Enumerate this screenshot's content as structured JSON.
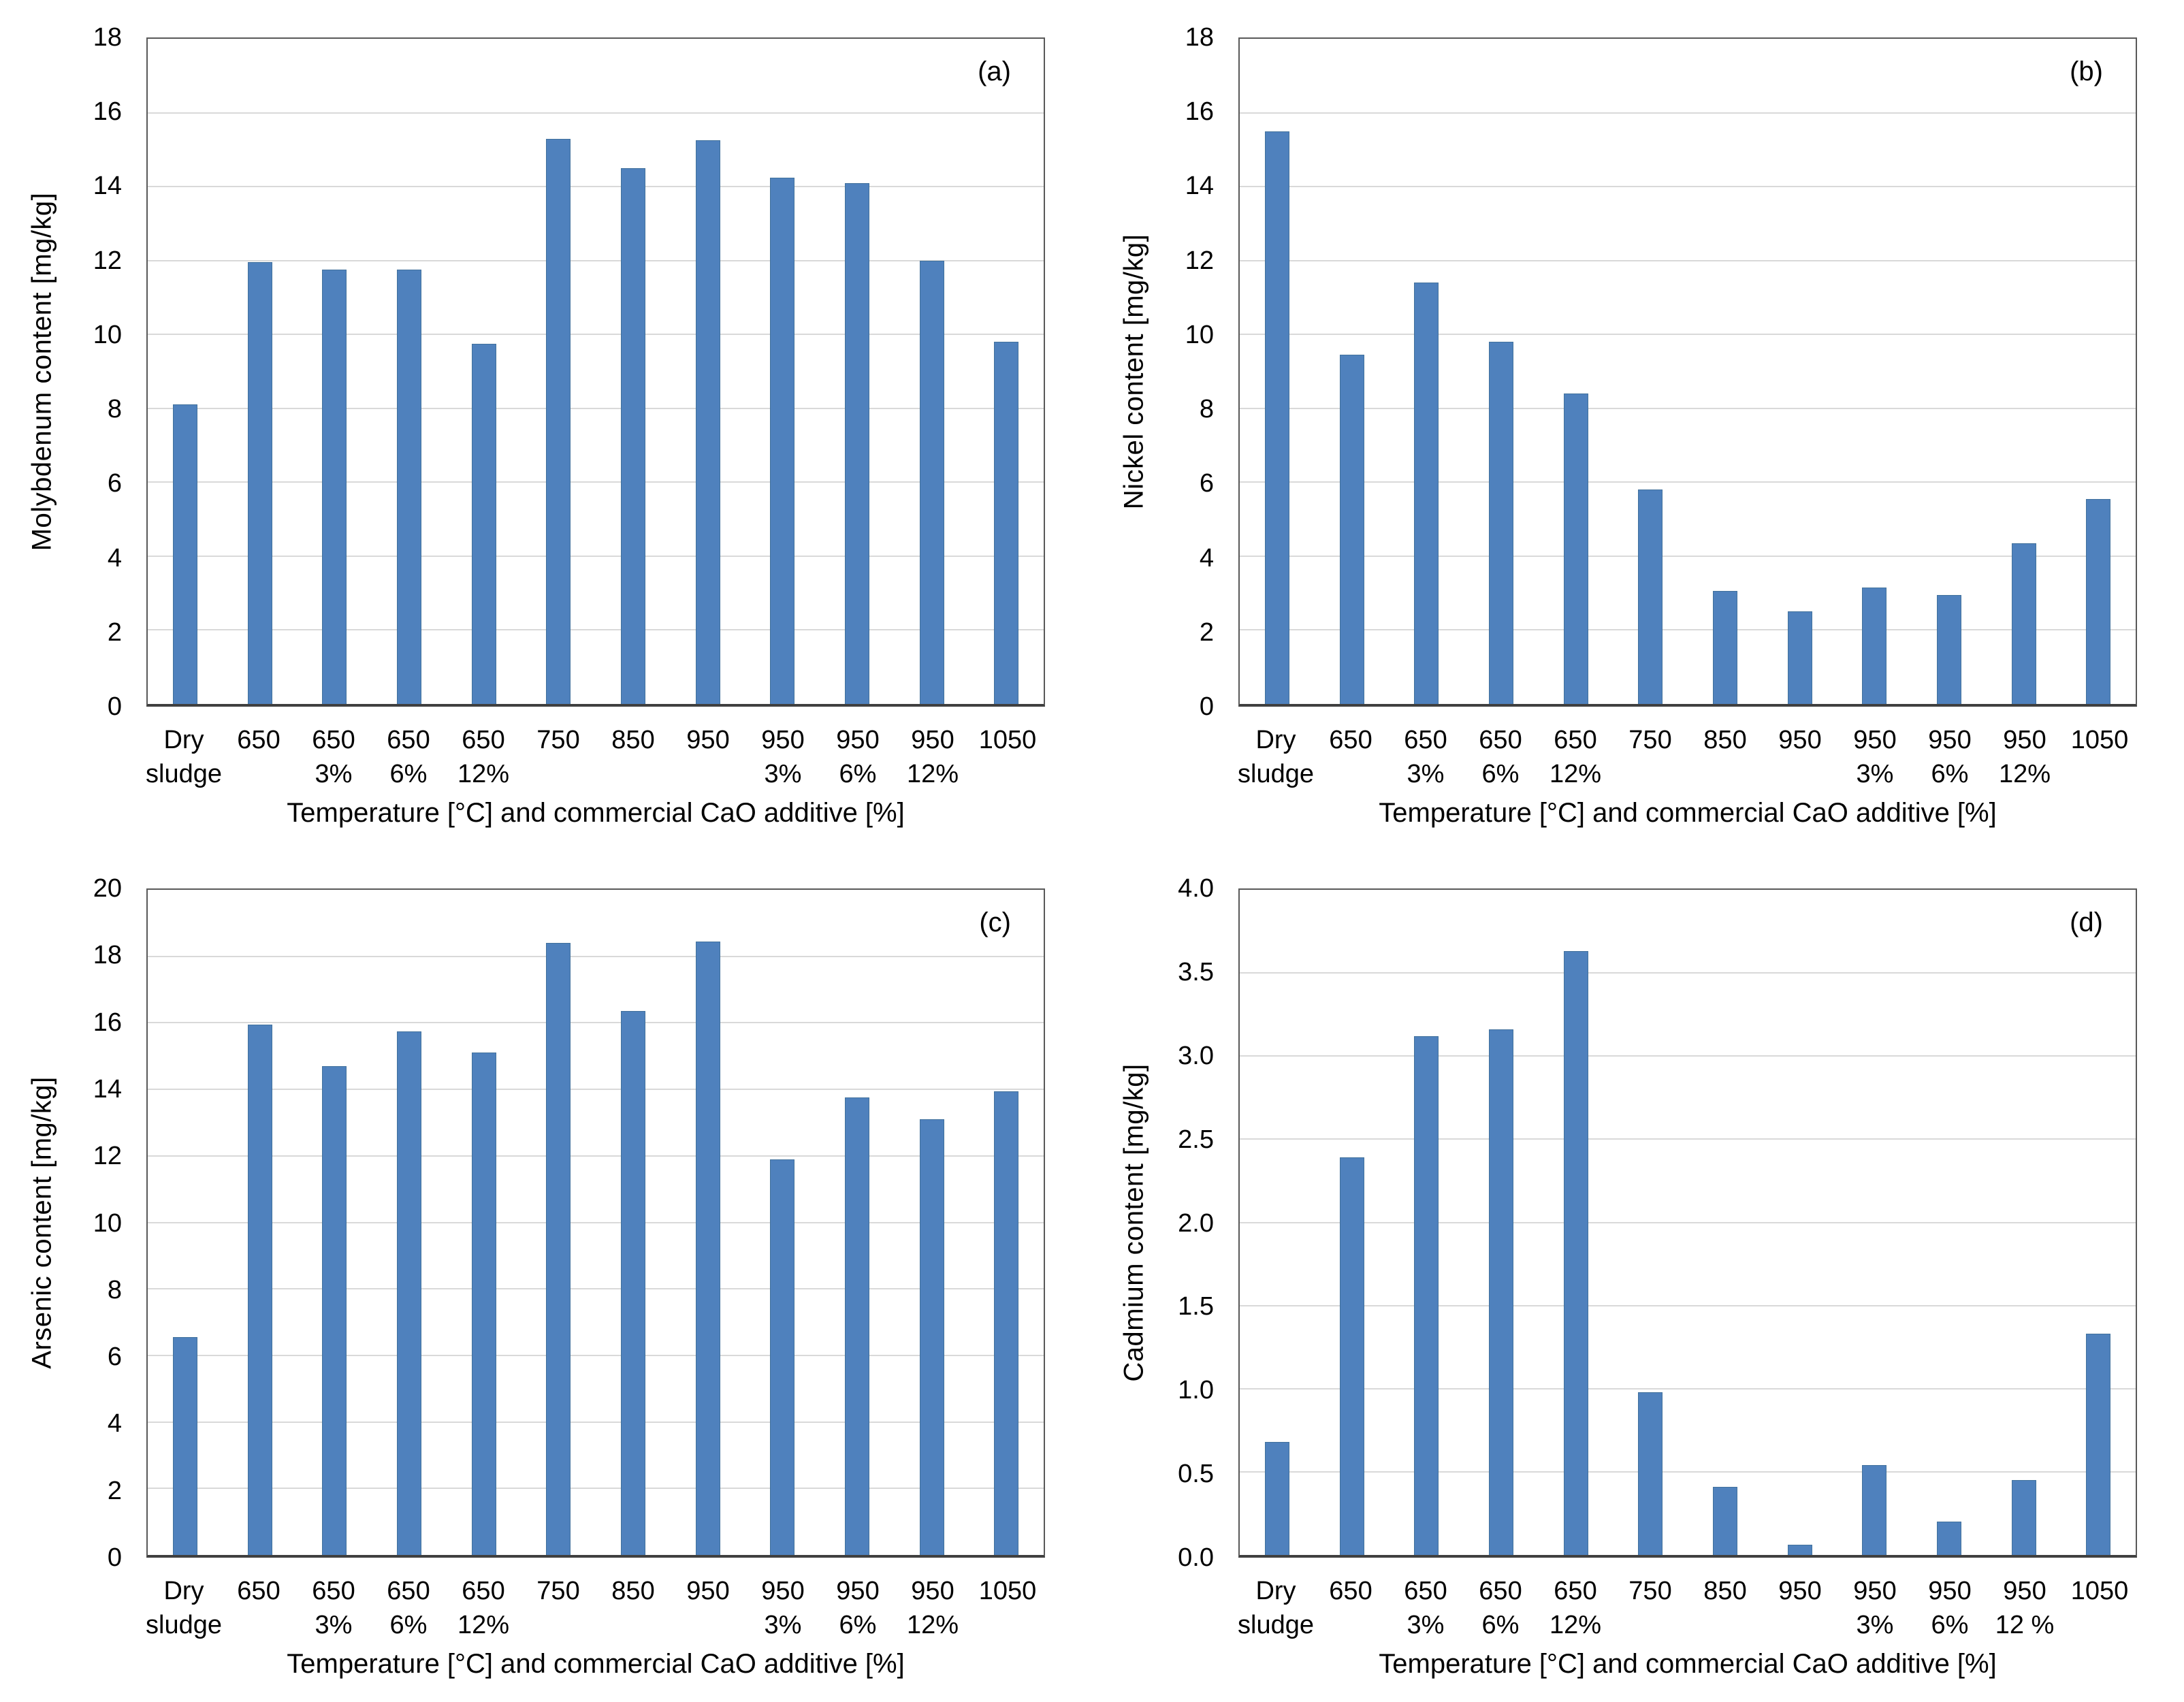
{
  "colors": {
    "bar": "#4F81BD",
    "bar_border": "#41719C",
    "grid": "#D9D9D9",
    "plot_border": "#595959",
    "axis_line": "#404040",
    "text": "#000000"
  },
  "chart_data": [
    {
      "type": "bar",
      "panel_label": "(a)",
      "ylabel": "Molybdenum content [mg/kg]",
      "xlabel": "Temperature [°C] and commercial CaO additive [%]",
      "ylim": [
        0,
        18
      ],
      "ytick_step": 2,
      "ytick_decimals": 0,
      "grid": true,
      "legend": "none",
      "categories": [
        [
          "Dry",
          "sludge"
        ],
        [
          "650",
          ""
        ],
        [
          "650",
          "3%"
        ],
        [
          "650",
          "6%"
        ],
        [
          "650",
          "12%"
        ],
        [
          "750",
          ""
        ],
        [
          "850",
          ""
        ],
        [
          "950",
          ""
        ],
        [
          "950",
          "3%"
        ],
        [
          "950",
          "6%"
        ],
        [
          "950",
          "12%"
        ],
        [
          "1050",
          ""
        ]
      ],
      "values": [
        8.1,
        11.95,
        11.75,
        11.75,
        9.75,
        15.3,
        14.5,
        15.25,
        14.25,
        14.1,
        12.0,
        9.8
      ]
    },
    {
      "type": "bar",
      "panel_label": "(b)",
      "ylabel": "Nickel content [mg/kg]",
      "xlabel": "Temperature [°C] and commercial CaO additive [%]",
      "ylim": [
        0,
        18
      ],
      "ytick_step": 2,
      "ytick_decimals": 0,
      "grid": true,
      "legend": "none",
      "categories": [
        [
          "Dry",
          "sludge"
        ],
        [
          "650",
          ""
        ],
        [
          "650",
          "3%"
        ],
        [
          "650",
          "6%"
        ],
        [
          "650",
          "12%"
        ],
        [
          "750",
          ""
        ],
        [
          "850",
          ""
        ],
        [
          "950",
          ""
        ],
        [
          "950",
          "3%"
        ],
        [
          "950",
          "6%"
        ],
        [
          "950",
          "12%"
        ],
        [
          "1050",
          ""
        ]
      ],
      "values": [
        15.5,
        9.45,
        11.4,
        9.8,
        8.4,
        5.8,
        3.05,
        2.5,
        3.15,
        2.95,
        4.35,
        5.55
      ]
    },
    {
      "type": "bar",
      "panel_label": "(c)",
      "ylabel": "Arsenic content [mg/kg]",
      "xlabel": "Temperature [°C] and commercial CaO additive [%]",
      "ylim": [
        0,
        20
      ],
      "ytick_step": 2,
      "ytick_decimals": 0,
      "grid": true,
      "legend": "none",
      "categories": [
        [
          "Dry",
          "sludge"
        ],
        [
          "650",
          ""
        ],
        [
          "650",
          "3%"
        ],
        [
          "650",
          "6%"
        ],
        [
          "650",
          "12%"
        ],
        [
          "750",
          ""
        ],
        [
          "850",
          ""
        ],
        [
          "950",
          ""
        ],
        [
          "950",
          "3%"
        ],
        [
          "950",
          "6%"
        ],
        [
          "950",
          "12%"
        ],
        [
          "1050",
          ""
        ]
      ],
      "values": [
        6.55,
        15.95,
        14.7,
        15.75,
        15.1,
        18.4,
        16.35,
        18.45,
        11.9,
        13.75,
        13.1,
        13.95
      ]
    },
    {
      "type": "bar",
      "panel_label": "(d)",
      "ylabel": "Cadmium content [mg/kg]",
      "xlabel": "Temperature [°C] and commercial CaO additive [%]",
      "ylim": [
        0,
        4
      ],
      "ytick_step": 0.5,
      "ytick_decimals": 1,
      "grid": true,
      "legend": "none",
      "categories": [
        [
          "Dry",
          "sludge"
        ],
        [
          "650",
          ""
        ],
        [
          "650",
          "3%"
        ],
        [
          "650",
          "6%"
        ],
        [
          "650",
          "12%"
        ],
        [
          "750",
          ""
        ],
        [
          "850",
          ""
        ],
        [
          "950",
          ""
        ],
        [
          "950",
          "3%"
        ],
        [
          "950",
          "6%"
        ],
        [
          "950",
          "12 %"
        ],
        [
          "1050",
          ""
        ]
      ],
      "values": [
        0.68,
        2.39,
        3.12,
        3.16,
        3.63,
        0.98,
        0.41,
        0.06,
        0.54,
        0.2,
        0.45,
        1.33
      ]
    }
  ]
}
